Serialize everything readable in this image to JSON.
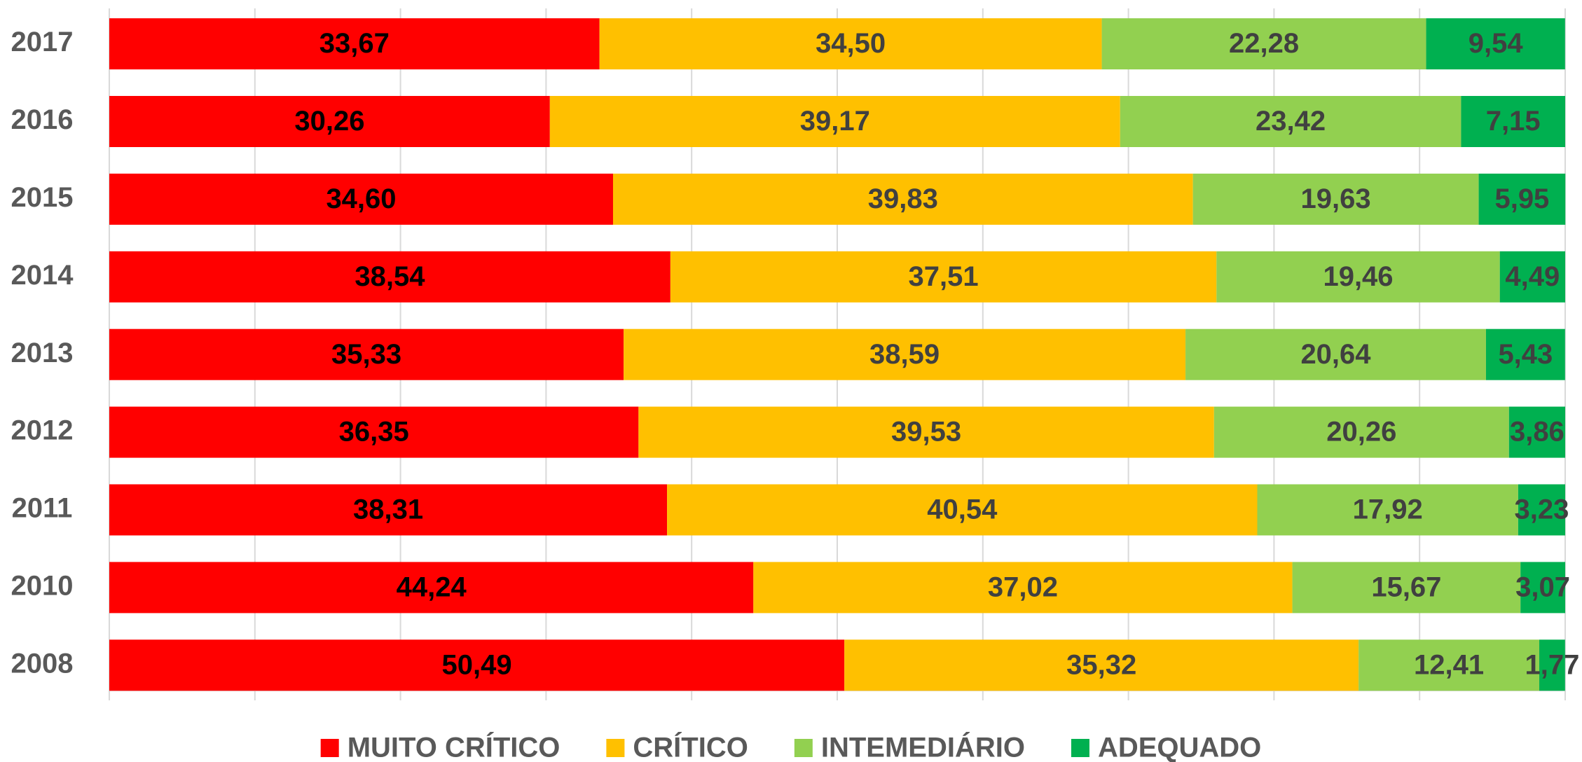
{
  "chart_data": {
    "type": "stacked-bar-horizontal",
    "categories": [
      "2017",
      "2016",
      "2015",
      "2014",
      "2013",
      "2012",
      "2011",
      "2010",
      "2008"
    ],
    "series": [
      {
        "name": "MUITO CRÍTICO",
        "color": "#ff0000",
        "label_color": "#000000",
        "values": [
          33.67,
          30.26,
          34.6,
          38.54,
          35.33,
          36.35,
          38.31,
          44.24,
          50.49
        ],
        "value_labels": [
          "33,67",
          "30,26",
          "34,60",
          "38,54",
          "35,33",
          "36,35",
          "38,31",
          "44,24",
          "50,49"
        ]
      },
      {
        "name": "CRÍTICO",
        "color": "#ffc000",
        "label_color": "#404040",
        "values": [
          34.5,
          39.17,
          39.83,
          37.51,
          38.59,
          39.53,
          40.54,
          37.02,
          35.32
        ],
        "value_labels": [
          "34,50",
          "39,17",
          "39,83",
          "37,51",
          "38,59",
          "39,53",
          "40,54",
          "37,02",
          "35,32"
        ]
      },
      {
        "name": "INTEMEDIÁRIO",
        "color": "#92d050",
        "label_color": "#404040",
        "values": [
          22.28,
          23.42,
          19.63,
          19.46,
          20.64,
          20.26,
          17.92,
          15.67,
          12.41
        ],
        "value_labels": [
          "22,28",
          "23,42",
          "19,63",
          "19,46",
          "20,64",
          "20,26",
          "17,92",
          "15,67",
          "12,41"
        ]
      },
      {
        "name": "ADEQUADO",
        "color": "#00b050",
        "label_color": "#404040",
        "values": [
          9.54,
          7.15,
          5.95,
          4.49,
          5.43,
          3.86,
          3.23,
          3.07,
          1.77
        ],
        "value_labels": [
          "9,54",
          "7,15",
          "5,95",
          "4,49",
          "5,43",
          "3,86",
          "3,23",
          "3,07",
          "1,77"
        ]
      }
    ],
    "xlim": [
      0,
      100
    ],
    "xticks": [
      0,
      10,
      20,
      30,
      40,
      50,
      60,
      70,
      80,
      90,
      100
    ],
    "grid": true,
    "legend": "bottom"
  }
}
